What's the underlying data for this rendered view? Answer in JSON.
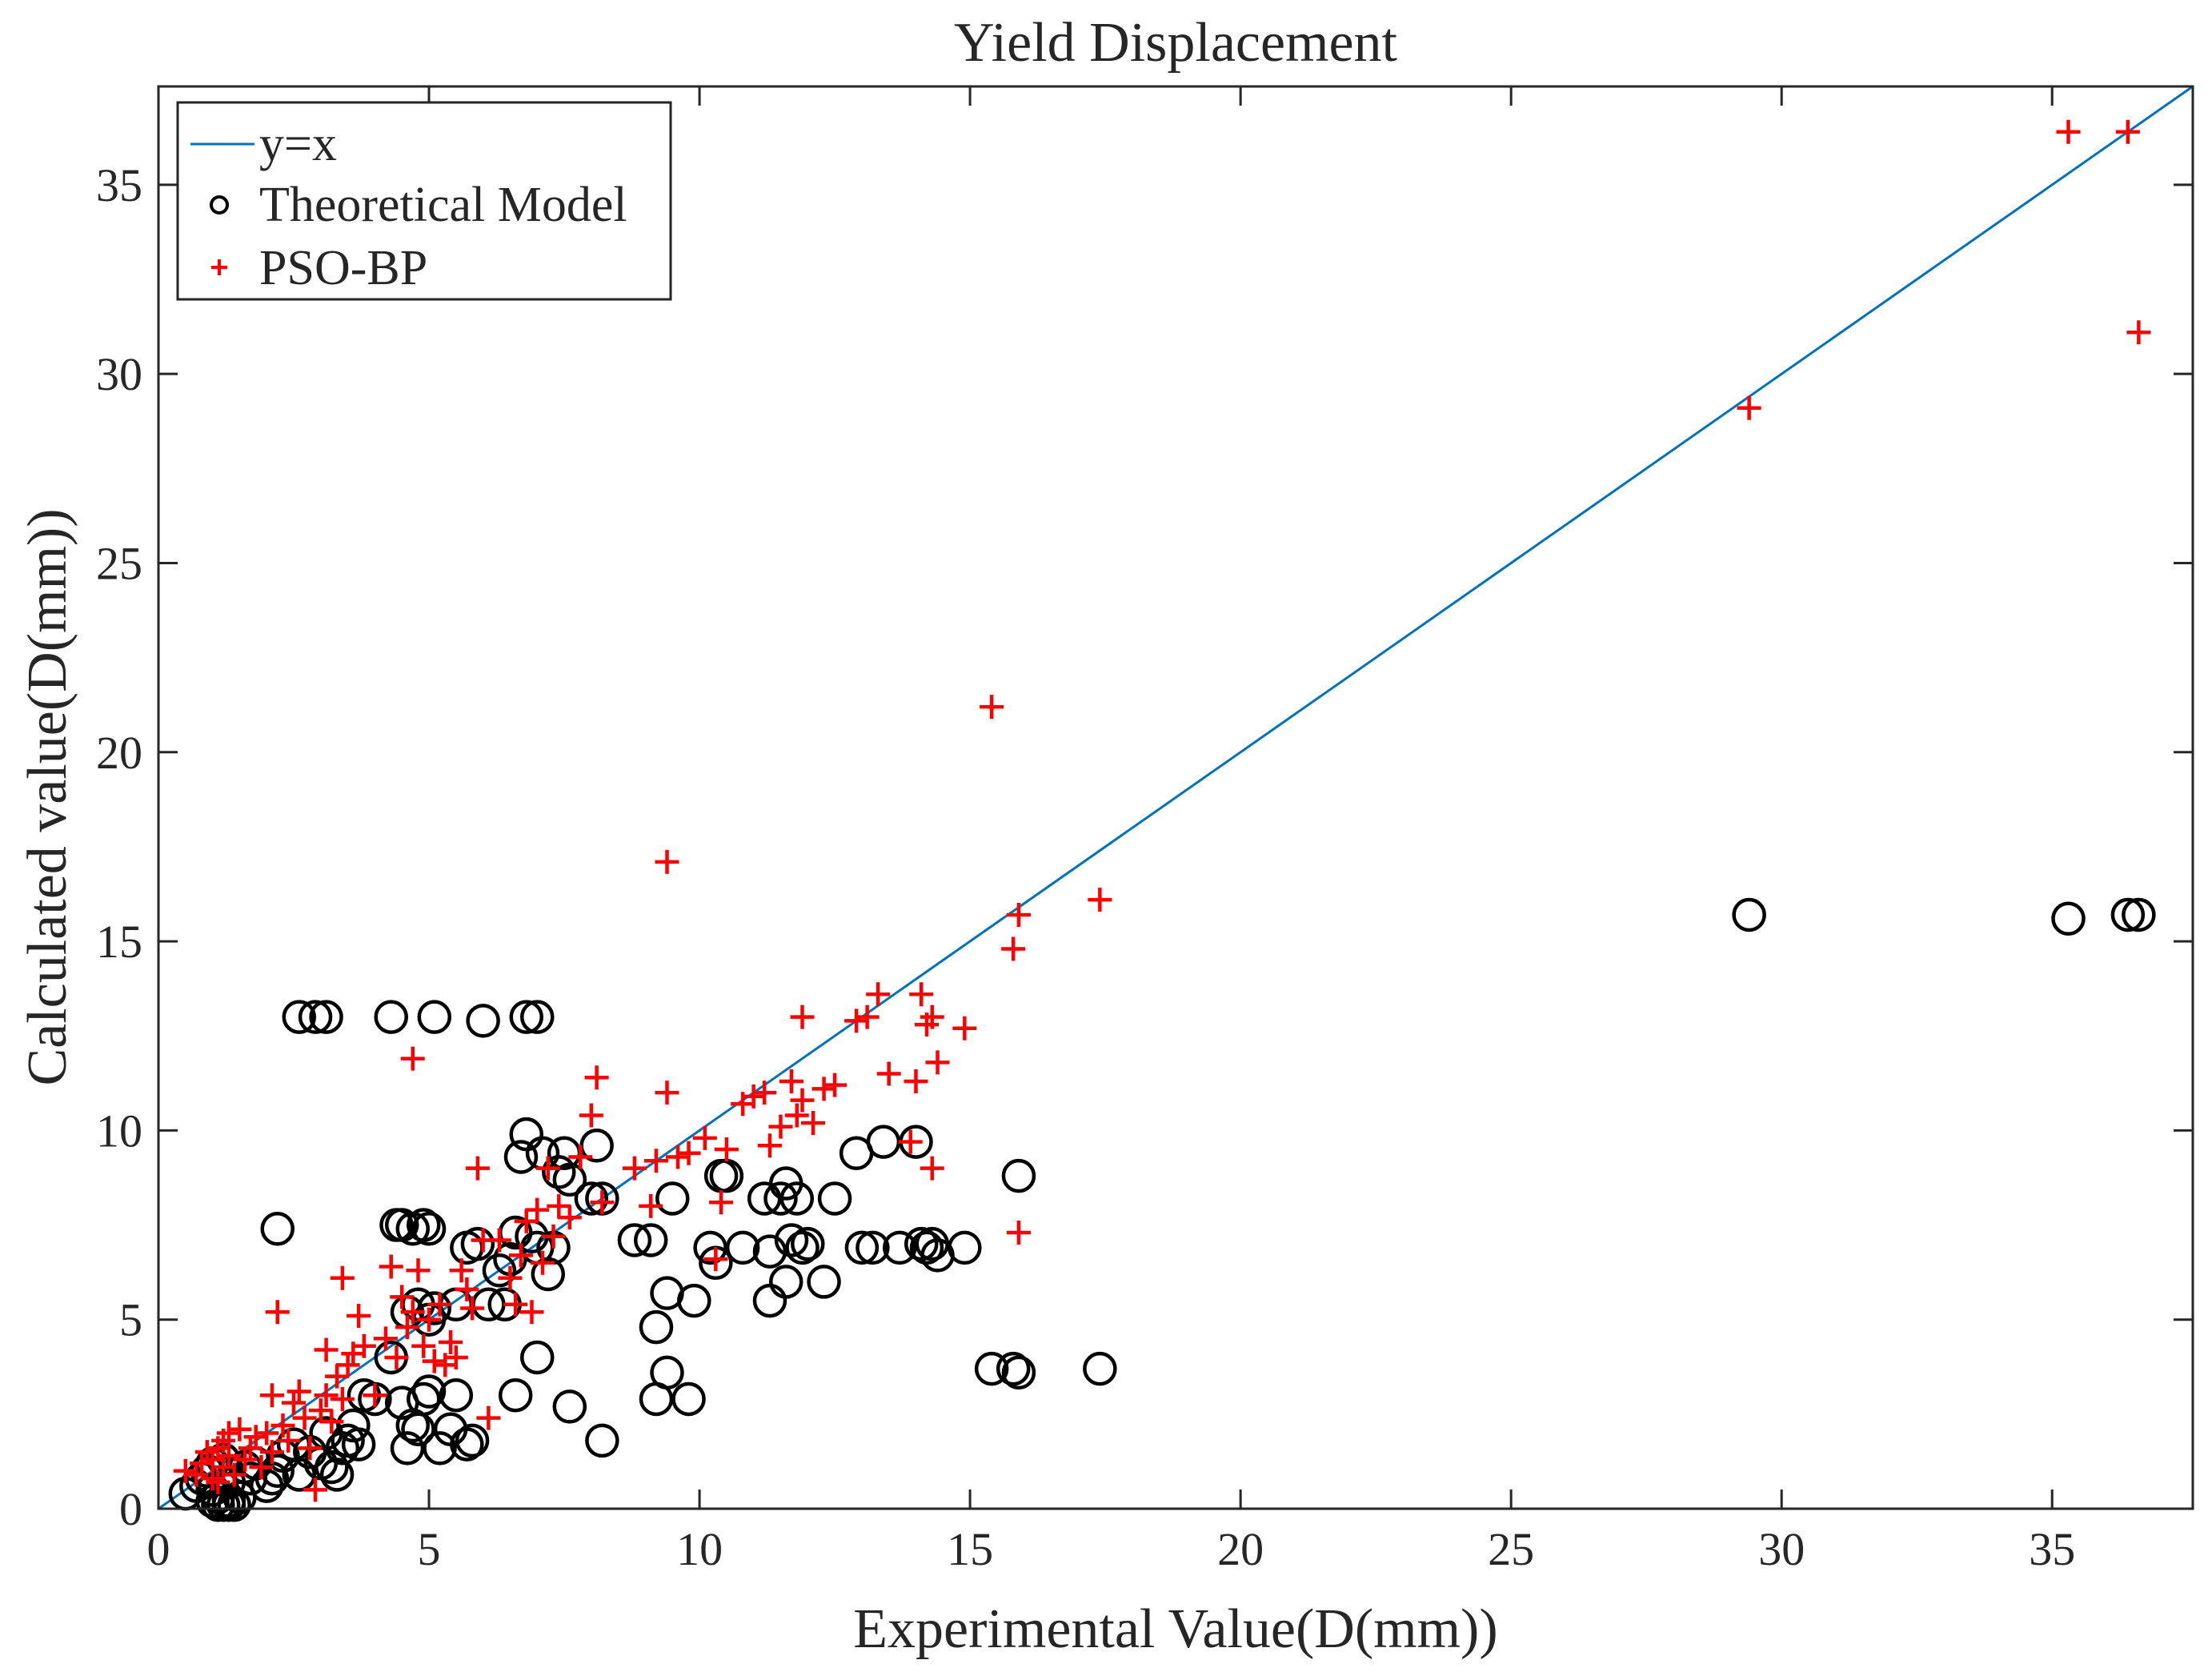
{
  "chart_data": {
    "type": "scatter",
    "title": "Yield Displacement",
    "xlabel": "Experimental Value(D(mm))",
    "ylabel": "Calculated value(D(mm))",
    "xlim": [
      0,
      37.6
    ],
    "ylim": [
      0,
      37.6
    ],
    "xticks": [
      0,
      5,
      10,
      15,
      20,
      25,
      30,
      35
    ],
    "yticks": [
      0,
      5,
      10,
      15,
      20,
      25,
      30,
      35
    ],
    "grid": false,
    "legend_position": "top-left",
    "colors": {
      "line": "#0072BD",
      "theoretical": "#000000",
      "pso": "#FF0000",
      "axes": "#262626"
    },
    "line": {
      "name": "y=x",
      "x": [
        0,
        37.6
      ],
      "y": [
        0,
        37.6
      ]
    },
    "series": [
      {
        "name": "Theoretical Model",
        "marker": "circle",
        "points": [
          [
            0.5,
            0.4
          ],
          [
            0.7,
            0.6
          ],
          [
            0.8,
            0.8
          ],
          [
            0.9,
            1.0
          ],
          [
            1.0,
            0.5
          ],
          [
            1.0,
            1.2
          ],
          [
            1.0,
            0.2
          ],
          [
            1.1,
            0.1
          ],
          [
            1.1,
            0.3
          ],
          [
            1.2,
            0.1
          ],
          [
            1.2,
            1.3
          ],
          [
            1.3,
            0.2
          ],
          [
            1.3,
            0.1
          ],
          [
            1.3,
            0.7
          ],
          [
            1.4,
            0.1
          ],
          [
            1.5,
            0.3
          ],
          [
            1.6,
            1.1
          ],
          [
            1.7,
            0.8
          ],
          [
            1.8,
            1.2
          ],
          [
            2.0,
            0.6
          ],
          [
            2.1,
            0.8
          ],
          [
            2.2,
            1.0
          ],
          [
            2.3,
            1.4
          ],
          [
            2.5,
            1.7
          ],
          [
            2.6,
            0.9
          ],
          [
            2.8,
            1.5
          ],
          [
            3.0,
            1.2
          ],
          [
            3.1,
            2.0
          ],
          [
            3.2,
            1.1
          ],
          [
            3.3,
            0.9
          ],
          [
            3.4,
            1.6
          ],
          [
            3.5,
            1.8
          ],
          [
            3.6,
            2.2
          ],
          [
            3.7,
            1.7
          ],
          [
            3.8,
            3.0
          ],
          [
            4.0,
            2.9
          ],
          [
            4.3,
            4.0
          ],
          [
            4.5,
            2.8
          ],
          [
            4.6,
            1.6
          ],
          [
            4.7,
            2.2
          ],
          [
            4.8,
            2.1
          ],
          [
            4.9,
            2.9
          ],
          [
            5.0,
            3.1
          ],
          [
            5.2,
            1.6
          ],
          [
            5.4,
            2.1
          ],
          [
            5.5,
            3.0
          ],
          [
            5.7,
            1.7
          ],
          [
            5.8,
            1.8
          ],
          [
            6.6,
            3.0
          ],
          [
            7.0,
            4.0
          ],
          [
            7.6,
            2.7
          ],
          [
            8.2,
            1.8
          ],
          [
            9.2,
            2.9
          ],
          [
            9.4,
            3.6
          ],
          [
            9.8,
            2.9
          ],
          [
            2.2,
            7.4
          ],
          [
            4.4,
            7.5
          ],
          [
            4.5,
            7.5
          ],
          [
            4.7,
            7.4
          ],
          [
            4.9,
            7.5
          ],
          [
            5.0,
            7.4
          ],
          [
            2.6,
            13.0
          ],
          [
            2.9,
            13.0
          ],
          [
            3.1,
            13.0
          ],
          [
            4.3,
            13.0
          ],
          [
            5.1,
            13.0
          ],
          [
            6.0,
            12.9
          ],
          [
            6.8,
            13.0
          ],
          [
            7.0,
            13.0
          ],
          [
            4.6,
            5.2
          ],
          [
            4.8,
            5.4
          ],
          [
            5.0,
            5.0
          ],
          [
            5.1,
            5.3
          ],
          [
            5.5,
            5.4
          ],
          [
            5.7,
            6.9
          ],
          [
            5.9,
            7.0
          ],
          [
            6.1,
            5.4
          ],
          [
            6.3,
            6.3
          ],
          [
            6.4,
            5.4
          ],
          [
            6.5,
            6.6
          ],
          [
            6.6,
            7.3
          ],
          [
            6.7,
            9.3
          ],
          [
            6.8,
            9.9
          ],
          [
            6.9,
            7.2
          ],
          [
            7.0,
            6.9
          ],
          [
            7.1,
            9.4
          ],
          [
            7.2,
            6.2
          ],
          [
            7.3,
            6.9
          ],
          [
            7.4,
            8.9
          ],
          [
            7.5,
            9.4
          ],
          [
            7.6,
            8.7
          ],
          [
            8.0,
            8.2
          ],
          [
            8.1,
            9.6
          ],
          [
            8.2,
            8.2
          ],
          [
            8.8,
            7.1
          ],
          [
            9.1,
            7.1
          ],
          [
            9.2,
            4.8
          ],
          [
            9.4,
            5.7
          ],
          [
            9.5,
            8.2
          ],
          [
            9.9,
            5.5
          ],
          [
            10.2,
            6.9
          ],
          [
            10.3,
            6.5
          ],
          [
            10.4,
            8.8
          ],
          [
            10.5,
            8.8
          ],
          [
            10.8,
            6.9
          ],
          [
            11.2,
            8.2
          ],
          [
            11.3,
            6.8
          ],
          [
            11.3,
            5.5
          ],
          [
            11.5,
            8.2
          ],
          [
            11.6,
            8.6
          ],
          [
            11.6,
            6.0
          ],
          [
            11.7,
            7.1
          ],
          [
            11.8,
            8.2
          ],
          [
            11.9,
            6.9
          ],
          [
            12.0,
            7.0
          ],
          [
            12.3,
            6.0
          ],
          [
            12.5,
            8.2
          ],
          [
            12.9,
            9.4
          ],
          [
            13.0,
            6.9
          ],
          [
            13.2,
            6.9
          ],
          [
            13.4,
            9.7
          ],
          [
            13.7,
            6.9
          ],
          [
            14.0,
            9.7
          ],
          [
            14.1,
            7.0
          ],
          [
            14.2,
            6.9
          ],
          [
            14.3,
            7.0
          ],
          [
            14.4,
            6.7
          ],
          [
            14.9,
            6.9
          ],
          [
            15.4,
            3.7
          ],
          [
            15.8,
            3.7
          ],
          [
            15.9,
            3.6
          ],
          [
            15.9,
            8.8
          ],
          [
            17.4,
            3.7
          ],
          [
            29.4,
            15.7
          ],
          [
            35.3,
            15.6
          ],
          [
            36.4,
            15.7
          ],
          [
            36.6,
            15.7
          ]
        ]
      },
      {
        "name": "PSO-BP",
        "marker": "plus",
        "points": [
          [
            0.5,
            1.0
          ],
          [
            0.7,
            0.9
          ],
          [
            0.8,
            1.2
          ],
          [
            0.9,
            1.5
          ],
          [
            1.0,
            0.8
          ],
          [
            1.0,
            1.3
          ],
          [
            1.1,
            1.6
          ],
          [
            1.1,
            0.7
          ],
          [
            1.2,
            1.1
          ],
          [
            1.2,
            1.8
          ],
          [
            1.3,
            1.4
          ],
          [
            1.3,
            2.0
          ],
          [
            1.4,
            0.9
          ],
          [
            1.5,
            2.1
          ],
          [
            1.6,
            1.3
          ],
          [
            1.7,
            1.6
          ],
          [
            1.8,
            1.9
          ],
          [
            1.9,
            1.1
          ],
          [
            2.0,
            2.0
          ],
          [
            2.1,
            1.5
          ],
          [
            2.1,
            3.0
          ],
          [
            2.2,
            5.2
          ],
          [
            2.3,
            2.2
          ],
          [
            2.4,
            1.8
          ],
          [
            2.5,
            2.8
          ],
          [
            2.6,
            3.1
          ],
          [
            2.7,
            2.4
          ],
          [
            2.8,
            1.6
          ],
          [
            2.9,
            0.5
          ],
          [
            3.0,
            2.6
          ],
          [
            3.1,
            3.0
          ],
          [
            3.1,
            4.2
          ],
          [
            3.2,
            2.3
          ],
          [
            3.3,
            3.5
          ],
          [
            3.4,
            2.9
          ],
          [
            3.4,
            6.1
          ],
          [
            3.5,
            3.8
          ],
          [
            3.6,
            4.1
          ],
          [
            3.7,
            5.1
          ],
          [
            3.8,
            4.3
          ],
          [
            4.0,
            3.0
          ],
          [
            4.2,
            4.5
          ],
          [
            4.3,
            6.4
          ],
          [
            4.4,
            4.0
          ],
          [
            4.5,
            5.6
          ],
          [
            4.6,
            4.8
          ],
          [
            4.7,
            5.2
          ],
          [
            4.7,
            11.9
          ],
          [
            4.8,
            6.3
          ],
          [
            4.9,
            4.3
          ],
          [
            5.0,
            5.0
          ],
          [
            5.1,
            3.9
          ],
          [
            5.2,
            5.4
          ],
          [
            5.3,
            3.8
          ],
          [
            5.4,
            4.4
          ],
          [
            5.5,
            4.0
          ],
          [
            5.6,
            6.3
          ],
          [
            5.7,
            5.8
          ],
          [
            5.8,
            5.3
          ],
          [
            5.9,
            9.0
          ],
          [
            6.0,
            7.1
          ],
          [
            6.1,
            2.4
          ],
          [
            6.3,
            7.1
          ],
          [
            6.5,
            6.1
          ],
          [
            6.6,
            5.4
          ],
          [
            6.7,
            6.7
          ],
          [
            6.8,
            7.6
          ],
          [
            6.9,
            5.2
          ],
          [
            7.0,
            7.9
          ],
          [
            7.1,
            6.5
          ],
          [
            7.2,
            9.0
          ],
          [
            7.3,
            7.2
          ],
          [
            7.4,
            8.0
          ],
          [
            7.6,
            7.7
          ],
          [
            7.8,
            9.3
          ],
          [
            8.0,
            10.4
          ],
          [
            8.1,
            11.4
          ],
          [
            8.2,
            8.1
          ],
          [
            8.8,
            9.0
          ],
          [
            9.1,
            8.0
          ],
          [
            9.2,
            9.2
          ],
          [
            9.4,
            11.0
          ],
          [
            9.4,
            17.1
          ],
          [
            9.6,
            9.3
          ],
          [
            9.8,
            9.4
          ],
          [
            10.1,
            9.8
          ],
          [
            10.3,
            6.6
          ],
          [
            10.4,
            8.1
          ],
          [
            10.5,
            9.5
          ],
          [
            10.8,
            10.7
          ],
          [
            11.0,
            10.9
          ],
          [
            11.2,
            11.0
          ],
          [
            11.3,
            9.6
          ],
          [
            11.5,
            10.1
          ],
          [
            11.7,
            11.3
          ],
          [
            11.8,
            10.4
          ],
          [
            11.9,
            10.8
          ],
          [
            11.9,
            13.0
          ],
          [
            12.1,
            10.2
          ],
          [
            12.3,
            11.1
          ],
          [
            12.5,
            11.2
          ],
          [
            12.9,
            12.9
          ],
          [
            13.1,
            13.0
          ],
          [
            13.3,
            13.6
          ],
          [
            13.5,
            11.5
          ],
          [
            13.9,
            9.7
          ],
          [
            14.0,
            11.3
          ],
          [
            14.1,
            13.6
          ],
          [
            14.2,
            12.8
          ],
          [
            14.3,
            13.0
          ],
          [
            14.3,
            9.0
          ],
          [
            14.4,
            11.8
          ],
          [
            14.9,
            12.7
          ],
          [
            15.4,
            21.2
          ],
          [
            15.8,
            14.8
          ],
          [
            15.9,
            15.7
          ],
          [
            15.9,
            7.3
          ],
          [
            17.4,
            16.1
          ],
          [
            29.4,
            29.1
          ],
          [
            35.3,
            36.4
          ],
          [
            36.4,
            36.4
          ],
          [
            36.6,
            31.1
          ]
        ]
      }
    ]
  }
}
